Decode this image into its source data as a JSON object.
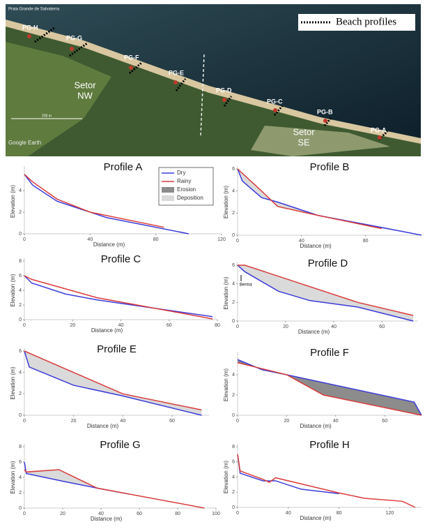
{
  "map": {
    "place": "Praia Grande de Salvaterra",
    "points": [
      "PG-H",
      "PG-G",
      "PG-F",
      "PG-E",
      "PG-D",
      "PG-C",
      "PG-B",
      "PG-A"
    ],
    "sectors": [
      [
        "Setor",
        "NW"
      ],
      [
        "Setor",
        "SE"
      ]
    ],
    "legend": "Beach profiles",
    "source": "Google Earth",
    "scale": "200 m"
  },
  "chart_data": [
    {
      "type": "line",
      "title": "Profile A",
      "xlabel": "Distance (m)",
      "ylabel": "Elevation (m)",
      "xlim": [
        0,
        120
      ],
      "ylim": [
        0,
        6
      ],
      "xticks": [
        0,
        40,
        80,
        120
      ],
      "yticks": [
        0,
        2,
        4
      ],
      "legend": true,
      "legend_extra": [
        {
          "name": "Erosion",
          "color": "#8c8c8c"
        },
        {
          "name": "Deposition",
          "color": "#dadada"
        }
      ],
      "series": [
        {
          "name": "Dry",
          "color": "#3b3bd9",
          "x": [
            0,
            5,
            20,
            30,
            50,
            100
          ],
          "values": [
            5.5,
            4.5,
            3,
            2.5,
            1.5,
            0
          ]
        },
        {
          "name": "Rainy",
          "color": "#d93b3b",
          "x": [
            0,
            5,
            20,
            40,
            85
          ],
          "values": [
            5.5,
            4.8,
            3.2,
            2,
            0.6
          ]
        }
      ]
    },
    {
      "type": "line",
      "title": "Profile B",
      "xlabel": "Distance (m)",
      "ylabel": "Elevation (m)",
      "xlim": [
        0,
        115
      ],
      "ylim": [
        0,
        6
      ],
      "xticks": [
        0,
        40,
        80
      ],
      "yticks": [
        0,
        2,
        4,
        6
      ],
      "fill": "#dadada",
      "series": [
        {
          "name": "Dry",
          "color": "#3b3bd9",
          "x": [
            0,
            3,
            15,
            25,
            50,
            90,
            115
          ],
          "values": [
            6,
            4.9,
            3.4,
            3,
            1.8,
            0.7,
            0
          ]
        },
        {
          "name": "Rainy",
          "color": "#d93b3b",
          "x": [
            0,
            15,
            25,
            50,
            90
          ],
          "values": [
            6,
            4,
            2.6,
            1.8,
            0.6
          ]
        }
      ]
    },
    {
      "type": "line",
      "title": "Profile C",
      "xlabel": "Distance (m)",
      "ylabel": "Elevation (m)",
      "xlim": [
        0,
        80
      ],
      "ylim": [
        0,
        8
      ],
      "xticks": [
        0,
        20,
        40,
        60,
        80
      ],
      "yticks": [
        0,
        2,
        4,
        6,
        8
      ],
      "series": [
        {
          "name": "Dry",
          "color": "#3b3bd9",
          "x": [
            0,
            3,
            17,
            30,
            78
          ],
          "values": [
            6,
            5,
            3.5,
            2.7,
            0.4
          ]
        },
        {
          "name": "Rainy",
          "color": "#d93b3b",
          "x": [
            0,
            3,
            30,
            50,
            78
          ],
          "values": [
            6,
            5.5,
            3,
            1.8,
            0.1
          ]
        }
      ]
    },
    {
      "type": "line",
      "title": "Profile D",
      "xlabel": "Distance (m)",
      "ylabel": "Elevation (m)",
      "xlim": [
        0,
        75
      ],
      "ylim": [
        0,
        6
      ],
      "xticks": [
        0,
        20,
        40,
        60
      ],
      "yticks": [
        0,
        2,
        4,
        6
      ],
      "fill": "#dadada",
      "annotation": "Berma",
      "series": [
        {
          "name": "Dry",
          "color": "#3b3bd9",
          "x": [
            0,
            3,
            17,
            30,
            50,
            73
          ],
          "values": [
            6,
            5.3,
            3.2,
            2.2,
            1.5,
            0
          ]
        },
        {
          "name": "Rainy",
          "color": "#d93b3b",
          "x": [
            0,
            3,
            50,
            73
          ],
          "values": [
            6,
            6,
            2,
            0.6
          ]
        }
      ]
    },
    {
      "type": "line",
      "title": "Profile E",
      "xlabel": "Distance (m)",
      "ylabel": "Elevation (m)",
      "xlim": [
        0,
        75
      ],
      "ylim": [
        0,
        6
      ],
      "xticks": [
        0,
        20,
        40,
        60
      ],
      "yticks": [
        0,
        2,
        4,
        6
      ],
      "fill": "#dadada",
      "series": [
        {
          "name": "Dry",
          "color": "#3b3bd9",
          "x": [
            0,
            2,
            20,
            40,
            72
          ],
          "values": [
            6,
            4.5,
            2.8,
            1.8,
            0
          ]
        },
        {
          "name": "Rainy",
          "color": "#d93b3b",
          "x": [
            0,
            20,
            40,
            72
          ],
          "values": [
            6,
            4,
            2,
            0.5
          ]
        }
      ]
    },
    {
      "type": "line",
      "title": "Profile F",
      "xlabel": "Distance (m)",
      "ylabel": "Elevation (m)",
      "xlim": [
        0,
        75
      ],
      "ylim": [
        0,
        6
      ],
      "xticks": [
        0,
        20,
        40,
        60
      ],
      "yticks": [
        0,
        2,
        4
      ],
      "fill": "#8c8c8c",
      "series": [
        {
          "name": "Dry",
          "color": "#3b3bd9",
          "x": [
            0,
            10,
            20,
            72,
            75
          ],
          "values": [
            5.5,
            4.5,
            4,
            1.3,
            0
          ]
        },
        {
          "name": "Rainy",
          "color": "#d93b3b",
          "x": [
            0,
            10,
            20,
            35,
            75
          ],
          "values": [
            5.2,
            4.6,
            4,
            2,
            0
          ]
        }
      ]
    },
    {
      "type": "line",
      "title": "Profile G",
      "xlabel": "Distance (m)",
      "ylabel": "Elevation (m)",
      "xlim": [
        0,
        100
      ],
      "ylim": [
        0,
        8
      ],
      "xticks": [
        0,
        20,
        40,
        60,
        80,
        100
      ],
      "yticks": [
        0,
        2,
        4,
        6,
        8
      ],
      "fill": "#dadada",
      "series": [
        {
          "name": "Dry",
          "color": "#3b3bd9",
          "x": [
            0,
            1,
            20,
            40,
            55
          ],
          "values": [
            6,
            4.5,
            3.5,
            2.5,
            1.8
          ]
        },
        {
          "name": "Rainy",
          "color": "#d93b3b",
          "x": [
            0,
            1,
            18,
            38,
            94
          ],
          "values": [
            5,
            4.7,
            5,
            2.6,
            0
          ]
        }
      ]
    },
    {
      "type": "line",
      "title": "Profile H",
      "xlabel": "Distance (m)",
      "ylabel": "Elevation (m)",
      "xlim": [
        0,
        145
      ],
      "ylim": [
        0,
        8
      ],
      "xticks": [
        0,
        40,
        80,
        120
      ],
      "yticks": [
        0,
        2,
        4,
        6,
        8
      ],
      "series": [
        {
          "name": "Dry",
          "color": "#3b3bd9",
          "x": [
            0,
            2,
            20,
            30,
            50,
            80
          ],
          "values": [
            7,
            4.5,
            3.5,
            3.5,
            2.4,
            1.8
          ]
        },
        {
          "name": "Rainy",
          "color": "#d93b3b",
          "x": [
            0,
            2,
            20,
            25,
            30,
            80,
            100,
            130,
            140
          ],
          "values": [
            7,
            4.8,
            3.7,
            3.3,
            3.9,
            1.9,
            1.2,
            0.8,
            0
          ]
        }
      ]
    }
  ]
}
